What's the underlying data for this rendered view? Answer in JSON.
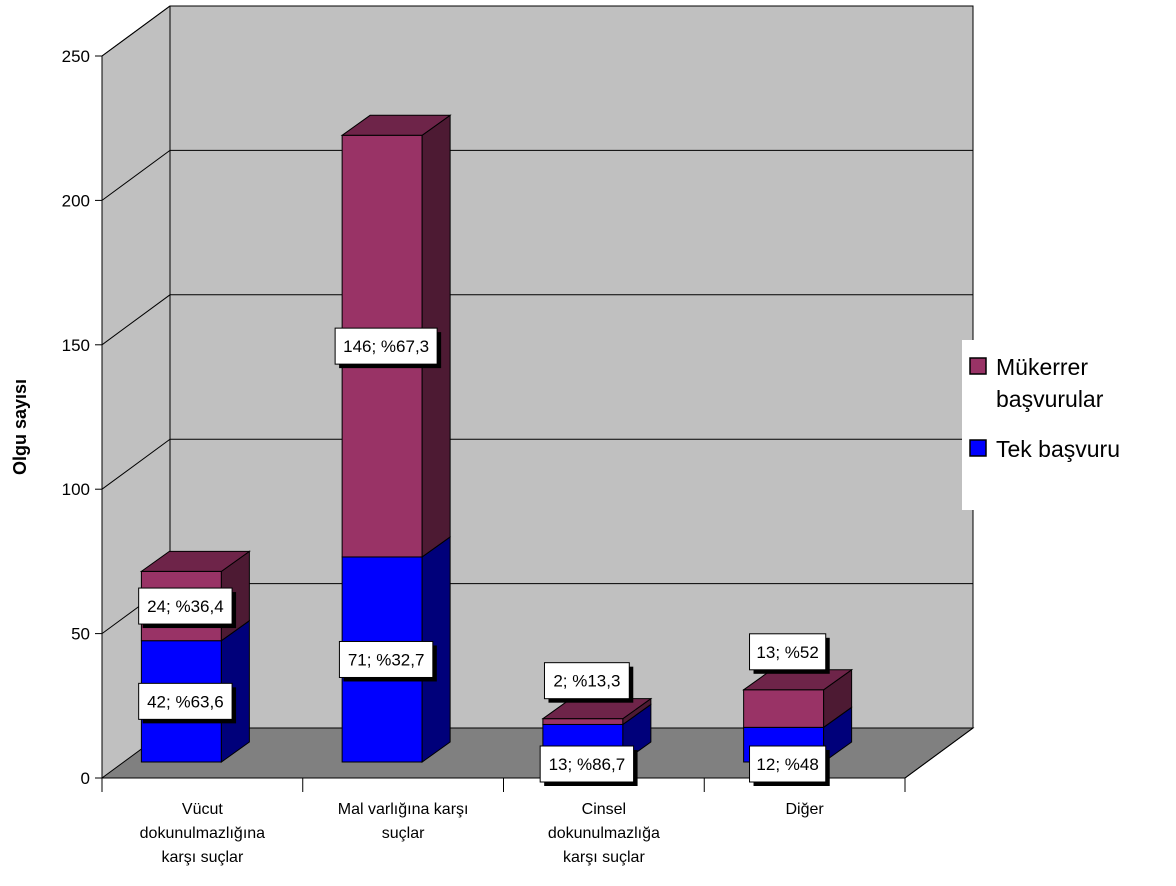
{
  "colors": {
    "tek_front": "#0000ff",
    "tek_side": "#00007a",
    "tek_top": "#0000a8",
    "mukerrer_front": "#993366",
    "mukerrer_side": "#4d1a33",
    "mukerrer_top": "#6e2449",
    "wall": "#c0c0c0",
    "floor": "#808080"
  },
  "chart_data": {
    "type": "bar",
    "stacked": true,
    "three_d": true,
    "ylabel": "Olgu sayısı",
    "xlabel": "",
    "ylim": [
      0,
      250
    ],
    "yticks": [
      0,
      50,
      100,
      150,
      200,
      250
    ],
    "grid": true,
    "legend_position": "right",
    "categories": [
      [
        "Vücut",
        "dokunulmazlığına",
        "karşı suçlar"
      ],
      [
        "Mal varlığına karşı",
        "suçlar"
      ],
      [
        "Cinsel",
        "dokunulmazlığa",
        "karşı suçlar"
      ],
      [
        "Diğer"
      ]
    ],
    "series": [
      {
        "name": "Tek başvuru",
        "values": [
          42,
          71,
          13,
          12
        ],
        "labels": [
          "42; %63,6",
          "71; %32,7",
          "13; %86,7",
          "12; %48"
        ]
      },
      {
        "name": "Mükerrer başvurular",
        "values": [
          24,
          146,
          2,
          13
        ],
        "labels": [
          "24; %36,4",
          "146; %67,3",
          "2; %13,3",
          "13; %52"
        ]
      }
    ],
    "legend": [
      {
        "series": 1,
        "lines": [
          "Mükerrer",
          "başvurular"
        ]
      },
      {
        "series": 0,
        "lines": [
          "Tek başvuru"
        ]
      }
    ]
  }
}
